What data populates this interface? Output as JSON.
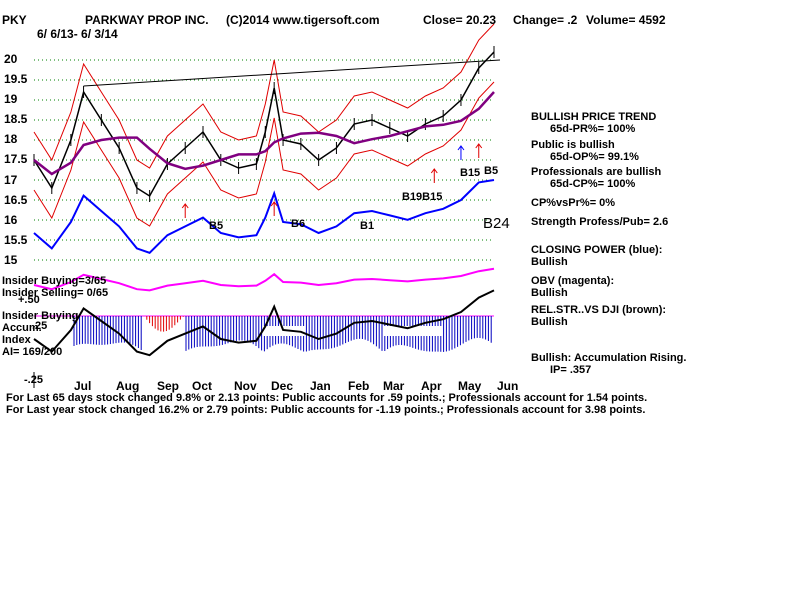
{
  "header": {
    "ticker": "PKY",
    "company": "PARKWAY PROP INC.",
    "copyright": "(C)2014 www.tigersoft.com",
    "close": "Close=  20.23",
    "change": "Change= .2",
    "volume": "Volume= 4592",
    "date_range": "6/ 6/13- 6/ 3/14"
  },
  "y_axis_labels": [
    "20",
    "19.5",
    "19",
    "18.5",
    "18",
    "17.5",
    "17",
    "16.5",
    "16",
    "15.5",
    "15"
  ],
  "indicator_axis_labels": {
    "top": "+.50",
    "mid": ".25",
    "bottom": "-.25"
  },
  "month_labels": [
    "Jul",
    "Aug",
    "Sep",
    "Oct",
    "Nov",
    "Dec",
    "Jan",
    "Feb",
    "Mar",
    "Apr",
    "May",
    "Jun"
  ],
  "signals": {
    "b5_oct": "B5",
    "b6_dec": "B6",
    "b1_feb": "B1",
    "b19b15": "B19B15",
    "b15b5": "B15B5",
    "b15": "B15",
    "b5_may": "B5",
    "b24": "B24"
  },
  "left_labels": {
    "insider_buying": "Insider Buying=3/65",
    "insider_selling": "Insider Selling= 0/65",
    "insider_buying2": "Insider Buying",
    "accum": "Accum.",
    "index": "Index",
    "ai": "AI= 169/200"
  },
  "right_panel": {
    "bullish_price_trend": "BULLISH PRICE TREND",
    "pr": "65d-PR%= 100%",
    "public_bullish": "Public is bullish",
    "op": "65d-OP%= 99.1%",
    "professionals_bullish": "Professionals are bullish",
    "cp": "65d-CP%= 100%",
    "cpvspr": "CP%vsPr%=  0%",
    "strength": "Strength Profess/Pub= 2.6",
    "closing_power": "CLOSING POWER (blue):",
    "closing_power_val": "Bullish",
    "obv": "OBV (magenta):",
    "obv_val": "Bullish",
    "relstr": "REL.STR..VS DJI (brown):",
    "relstr_val": "Bullish",
    "accum_rising": "Bullish: Accumulation Rising.",
    "ip": "IP=  .357"
  },
  "footer": {
    "line1": "For Last 65 days stock changed  9.8% or  2.13 points:  Public accounts for  .59 points.;  Professionals account for  1.54 points.",
    "line2": "For Last year stock changed  16.2% or  2.79 points:  Public accounts for -1.19 points.;  Professionals account for  3.98 points."
  },
  "chart_data": {
    "type": "line",
    "title": "PARKWAY PROP INC.",
    "xlabel": "",
    "ylabel": "",
    "x_range": [
      "2013-06-06",
      "2014-06-03"
    ],
    "ylim": [
      15,
      20
    ],
    "grid": true,
    "colors": {
      "price": "#000000",
      "bands": "#e00000",
      "ma": "#800080",
      "closing_power": "#0000ff",
      "obv": "#ff00ff",
      "accum_pos": "#0000c0",
      "accum_neg": "#e00000",
      "grid": "#008000",
      "trendline": "#000000"
    },
    "price_series": {
      "name": "price",
      "x": [
        "2013-06-06",
        "2013-06-20",
        "2013-07-05",
        "2013-07-15",
        "2013-07-29",
        "2013-08-12",
        "2013-08-26",
        "2013-09-05",
        "2013-09-19",
        "2013-10-03",
        "2013-10-17",
        "2013-10-31",
        "2013-11-14",
        "2013-11-28",
        "2013-12-05",
        "2013-12-12",
        "2013-12-19",
        "2014-01-02",
        "2014-01-16",
        "2014-01-30",
        "2014-02-13",
        "2014-02-27",
        "2014-03-13",
        "2014-03-27",
        "2014-04-10",
        "2014-04-24",
        "2014-05-08",
        "2014-05-22",
        "2014-06-03"
      ],
      "y": [
        17.5,
        16.8,
        18.0,
        19.2,
        18.5,
        17.8,
        16.8,
        16.6,
        17.4,
        17.8,
        18.2,
        17.5,
        17.3,
        17.4,
        18.2,
        19.3,
        18.0,
        17.9,
        17.5,
        17.8,
        18.4,
        18.5,
        18.3,
        18.1,
        18.4,
        18.6,
        19.0,
        19.8,
        20.2
      ]
    },
    "annotations": [
      "B5",
      "B6",
      "B1",
      "B19B15",
      "B15B5",
      "B15",
      "B24"
    ]
  }
}
